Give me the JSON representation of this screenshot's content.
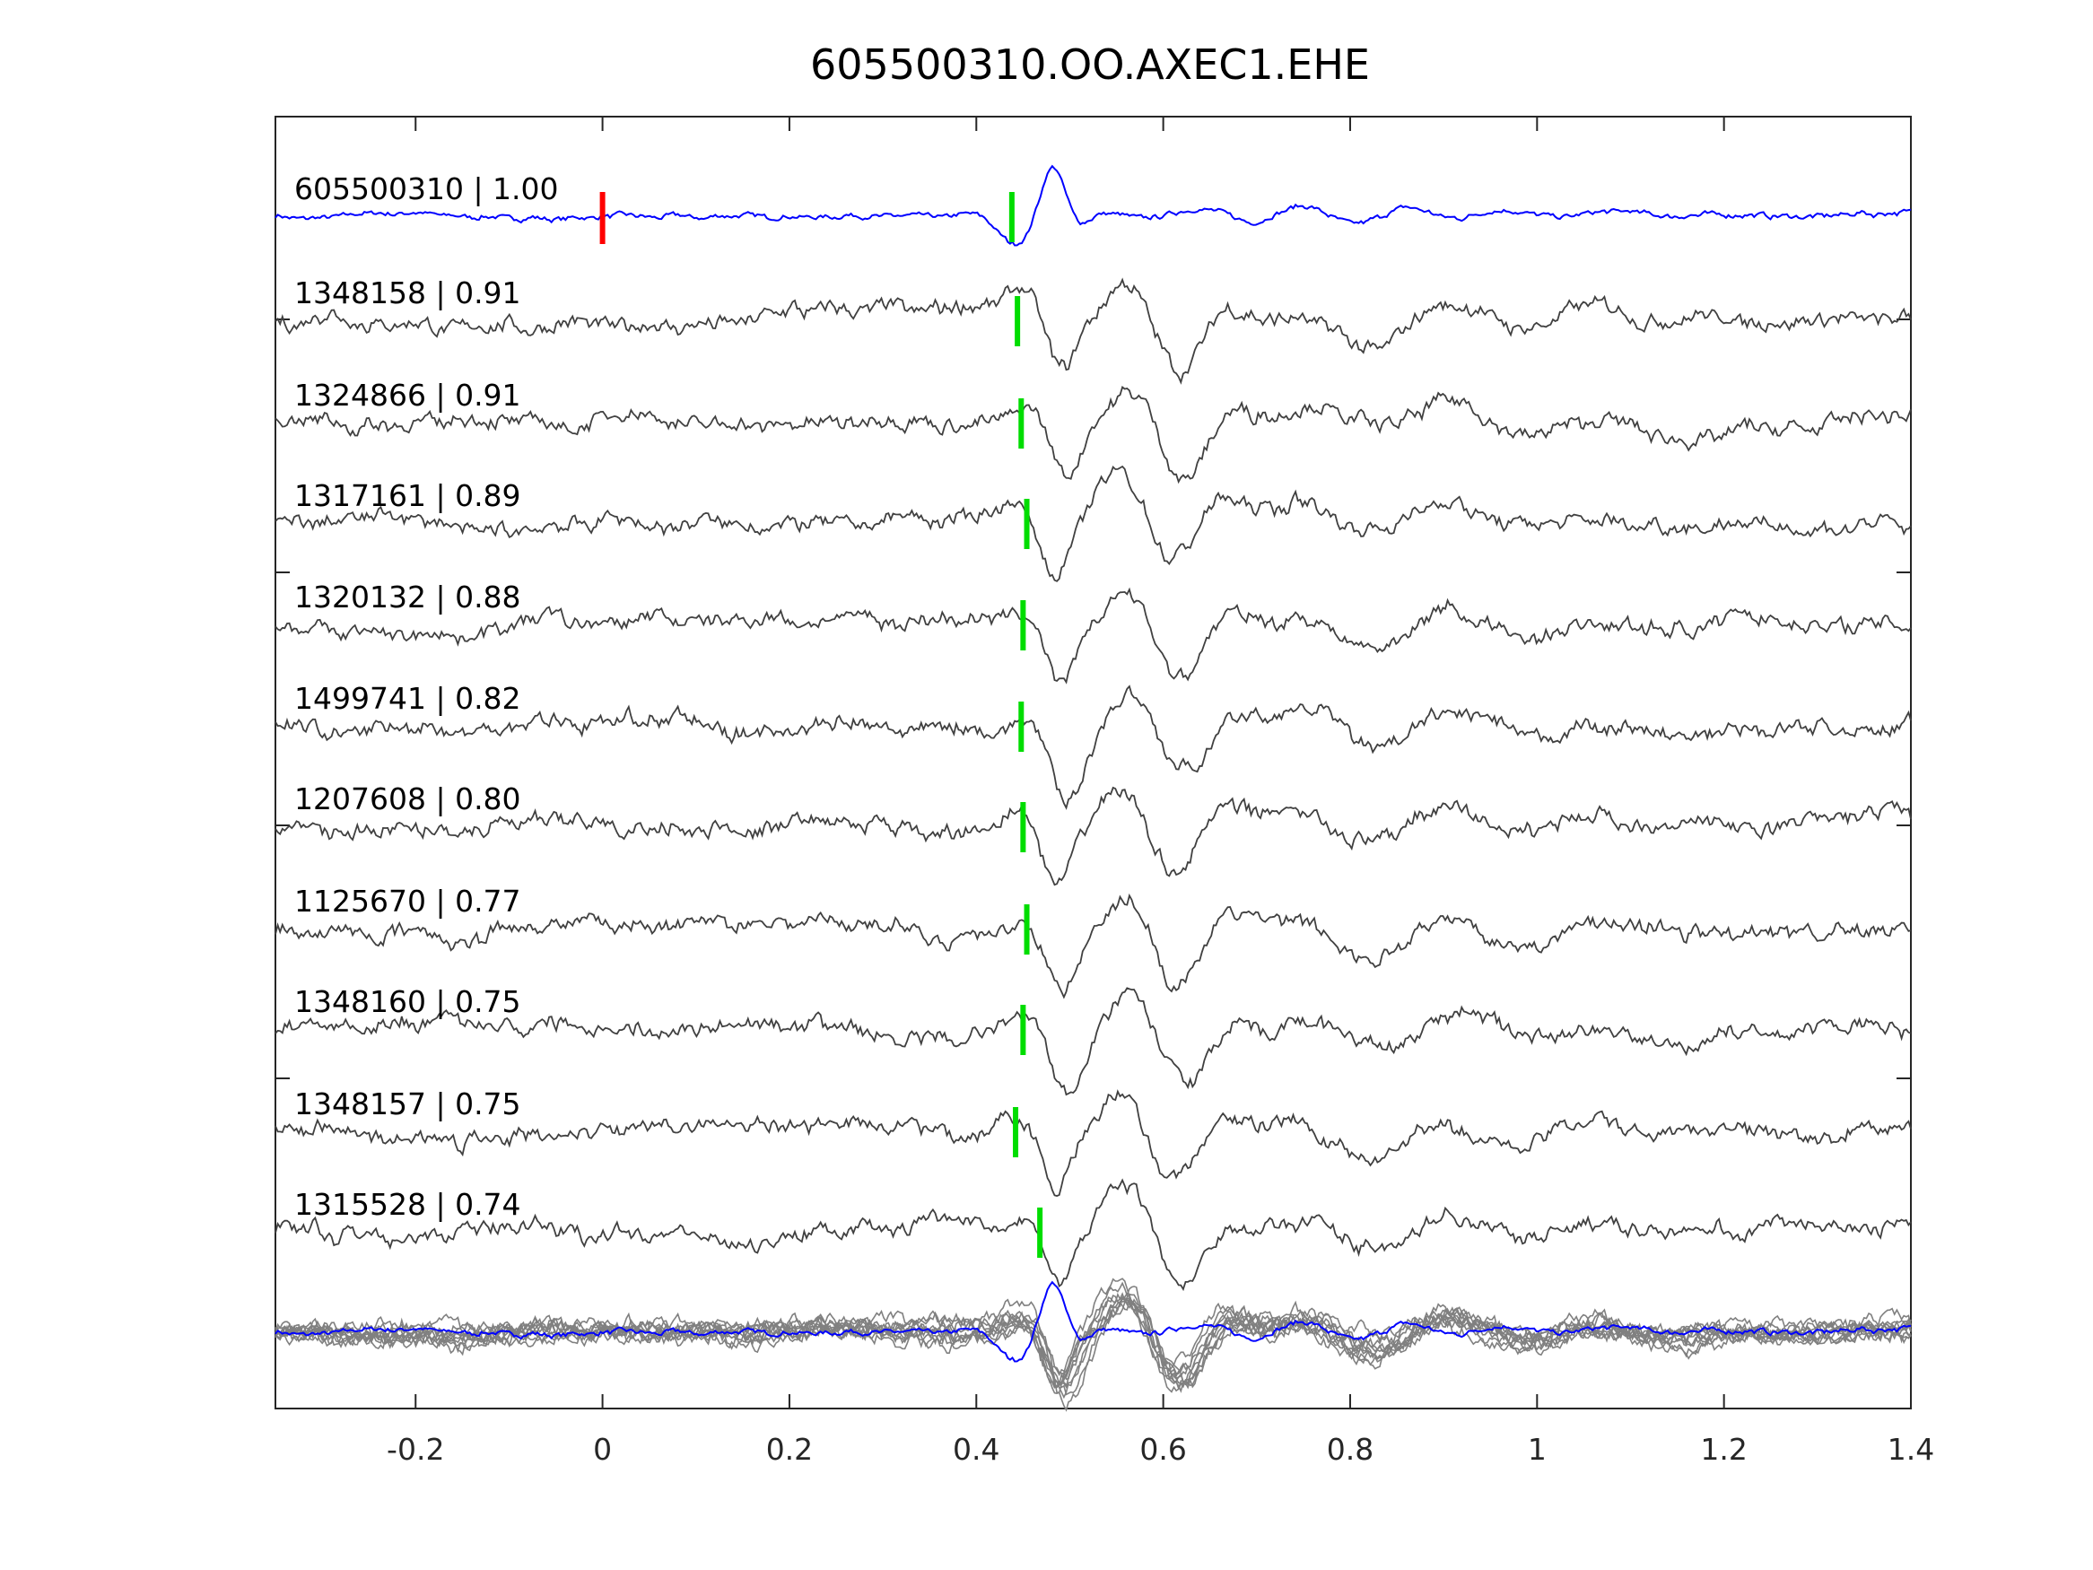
{
  "chart_data": {
    "type": "line",
    "title": "605500310.OO.AXEC1.EHE",
    "xlabel": "",
    "ylabel": "",
    "xlim": [
      -0.35,
      1.4
    ],
    "xticks": [
      "-0.2",
      "0",
      "0.2",
      "0.4",
      "0.6",
      "0.8",
      "1",
      "1.2",
      "1.4"
    ],
    "xtick_values": [
      -0.2,
      0,
      0.2,
      0.4,
      0.6,
      0.8,
      1.0,
      1.2,
      1.4
    ],
    "grid": false,
    "reference_color": "#0000ff",
    "trace_color": "#404040",
    "stack_color": "#808080",
    "pick_color": "#00dd00",
    "origin_color": "#ff0000",
    "origin_marker_time": 0.0,
    "traces": [
      {
        "label": "605500310 | 1.00",
        "pick": 0.438,
        "reference": true
      },
      {
        "label": "1348158 | 0.91",
        "pick": 0.444
      },
      {
        "label": "1324866 | 0.91",
        "pick": 0.448
      },
      {
        "label": "1317161 | 0.89",
        "pick": 0.454
      },
      {
        "label": "1320132 | 0.88",
        "pick": 0.45
      },
      {
        "label": "1499741 | 0.82",
        "pick": 0.448
      },
      {
        "label": "1207608 | 0.80",
        "pick": 0.45
      },
      {
        "label": "1125670 | 0.77",
        "pick": 0.454
      },
      {
        "label": "1348160 | 0.75",
        "pick": 0.45
      },
      {
        "label": "1348157 | 0.75",
        "pick": 0.442
      },
      {
        "label": "1315528 | 0.74",
        "pick": 0.468
      }
    ]
  }
}
